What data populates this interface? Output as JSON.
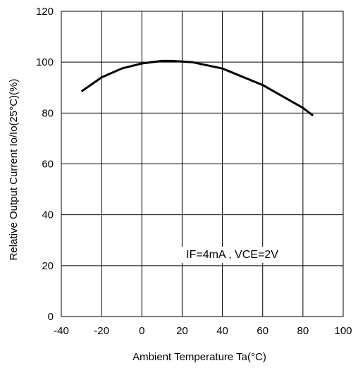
{
  "chart_data": {
    "type": "line",
    "title": "",
    "xlabel": "Ambient Temperature Ta(°C)",
    "ylabel": "Relative Output Current Io/Io(25°C)(%)",
    "xlim": [
      -40,
      100
    ],
    "ylim": [
      0,
      120
    ],
    "x_ticks": [
      "-40",
      "-20",
      "0",
      "20",
      "40",
      "60",
      "80",
      "100"
    ],
    "y_ticks": [
      "0",
      "20",
      "40",
      "60",
      "80",
      "100",
      "120"
    ],
    "grid": true,
    "annotation": "IF=4mA , VCE=2V",
    "series": [
      {
        "x": [
          -30,
          -20,
          -10,
          0,
          10,
          15,
          25,
          40,
          60,
          80,
          85
        ],
        "y": [
          88.5,
          94,
          97.5,
          99.5,
          100.5,
          100.5,
          100,
          97.5,
          91,
          82,
          79
        ]
      }
    ],
    "line_color": "#000000"
  }
}
